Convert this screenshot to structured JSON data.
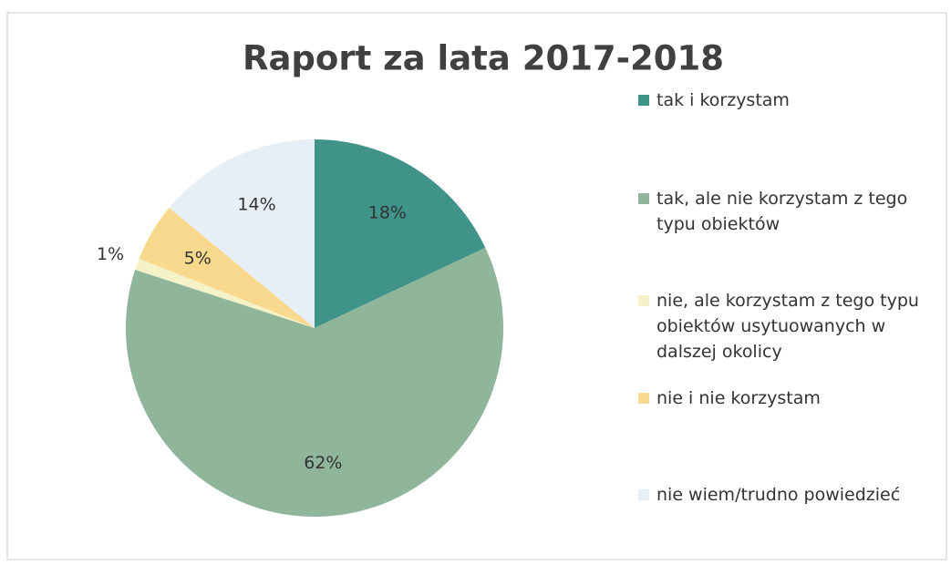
{
  "chart_data": {
    "type": "pie",
    "title": "Raport za lata 2017-2018",
    "categories": [
      "tak i korzystam",
      "tak, ale nie korzystam z tego typu obiektów",
      "nie, ale korzystam z tego typu obiektów usytuowanych w dalszej okolicy",
      "nie i nie korzystam",
      "nie wiem/trudno powiedzieć"
    ],
    "values": [
      18,
      62,
      1,
      5,
      14
    ],
    "value_labels": [
      "18%",
      "62%",
      "1%",
      "5%",
      "14%"
    ],
    "colors": [
      "#3f9389",
      "#8fb59a",
      "#f6f2c8",
      "#f8d98e",
      "#e6eef6"
    ],
    "legend": "right"
  }
}
